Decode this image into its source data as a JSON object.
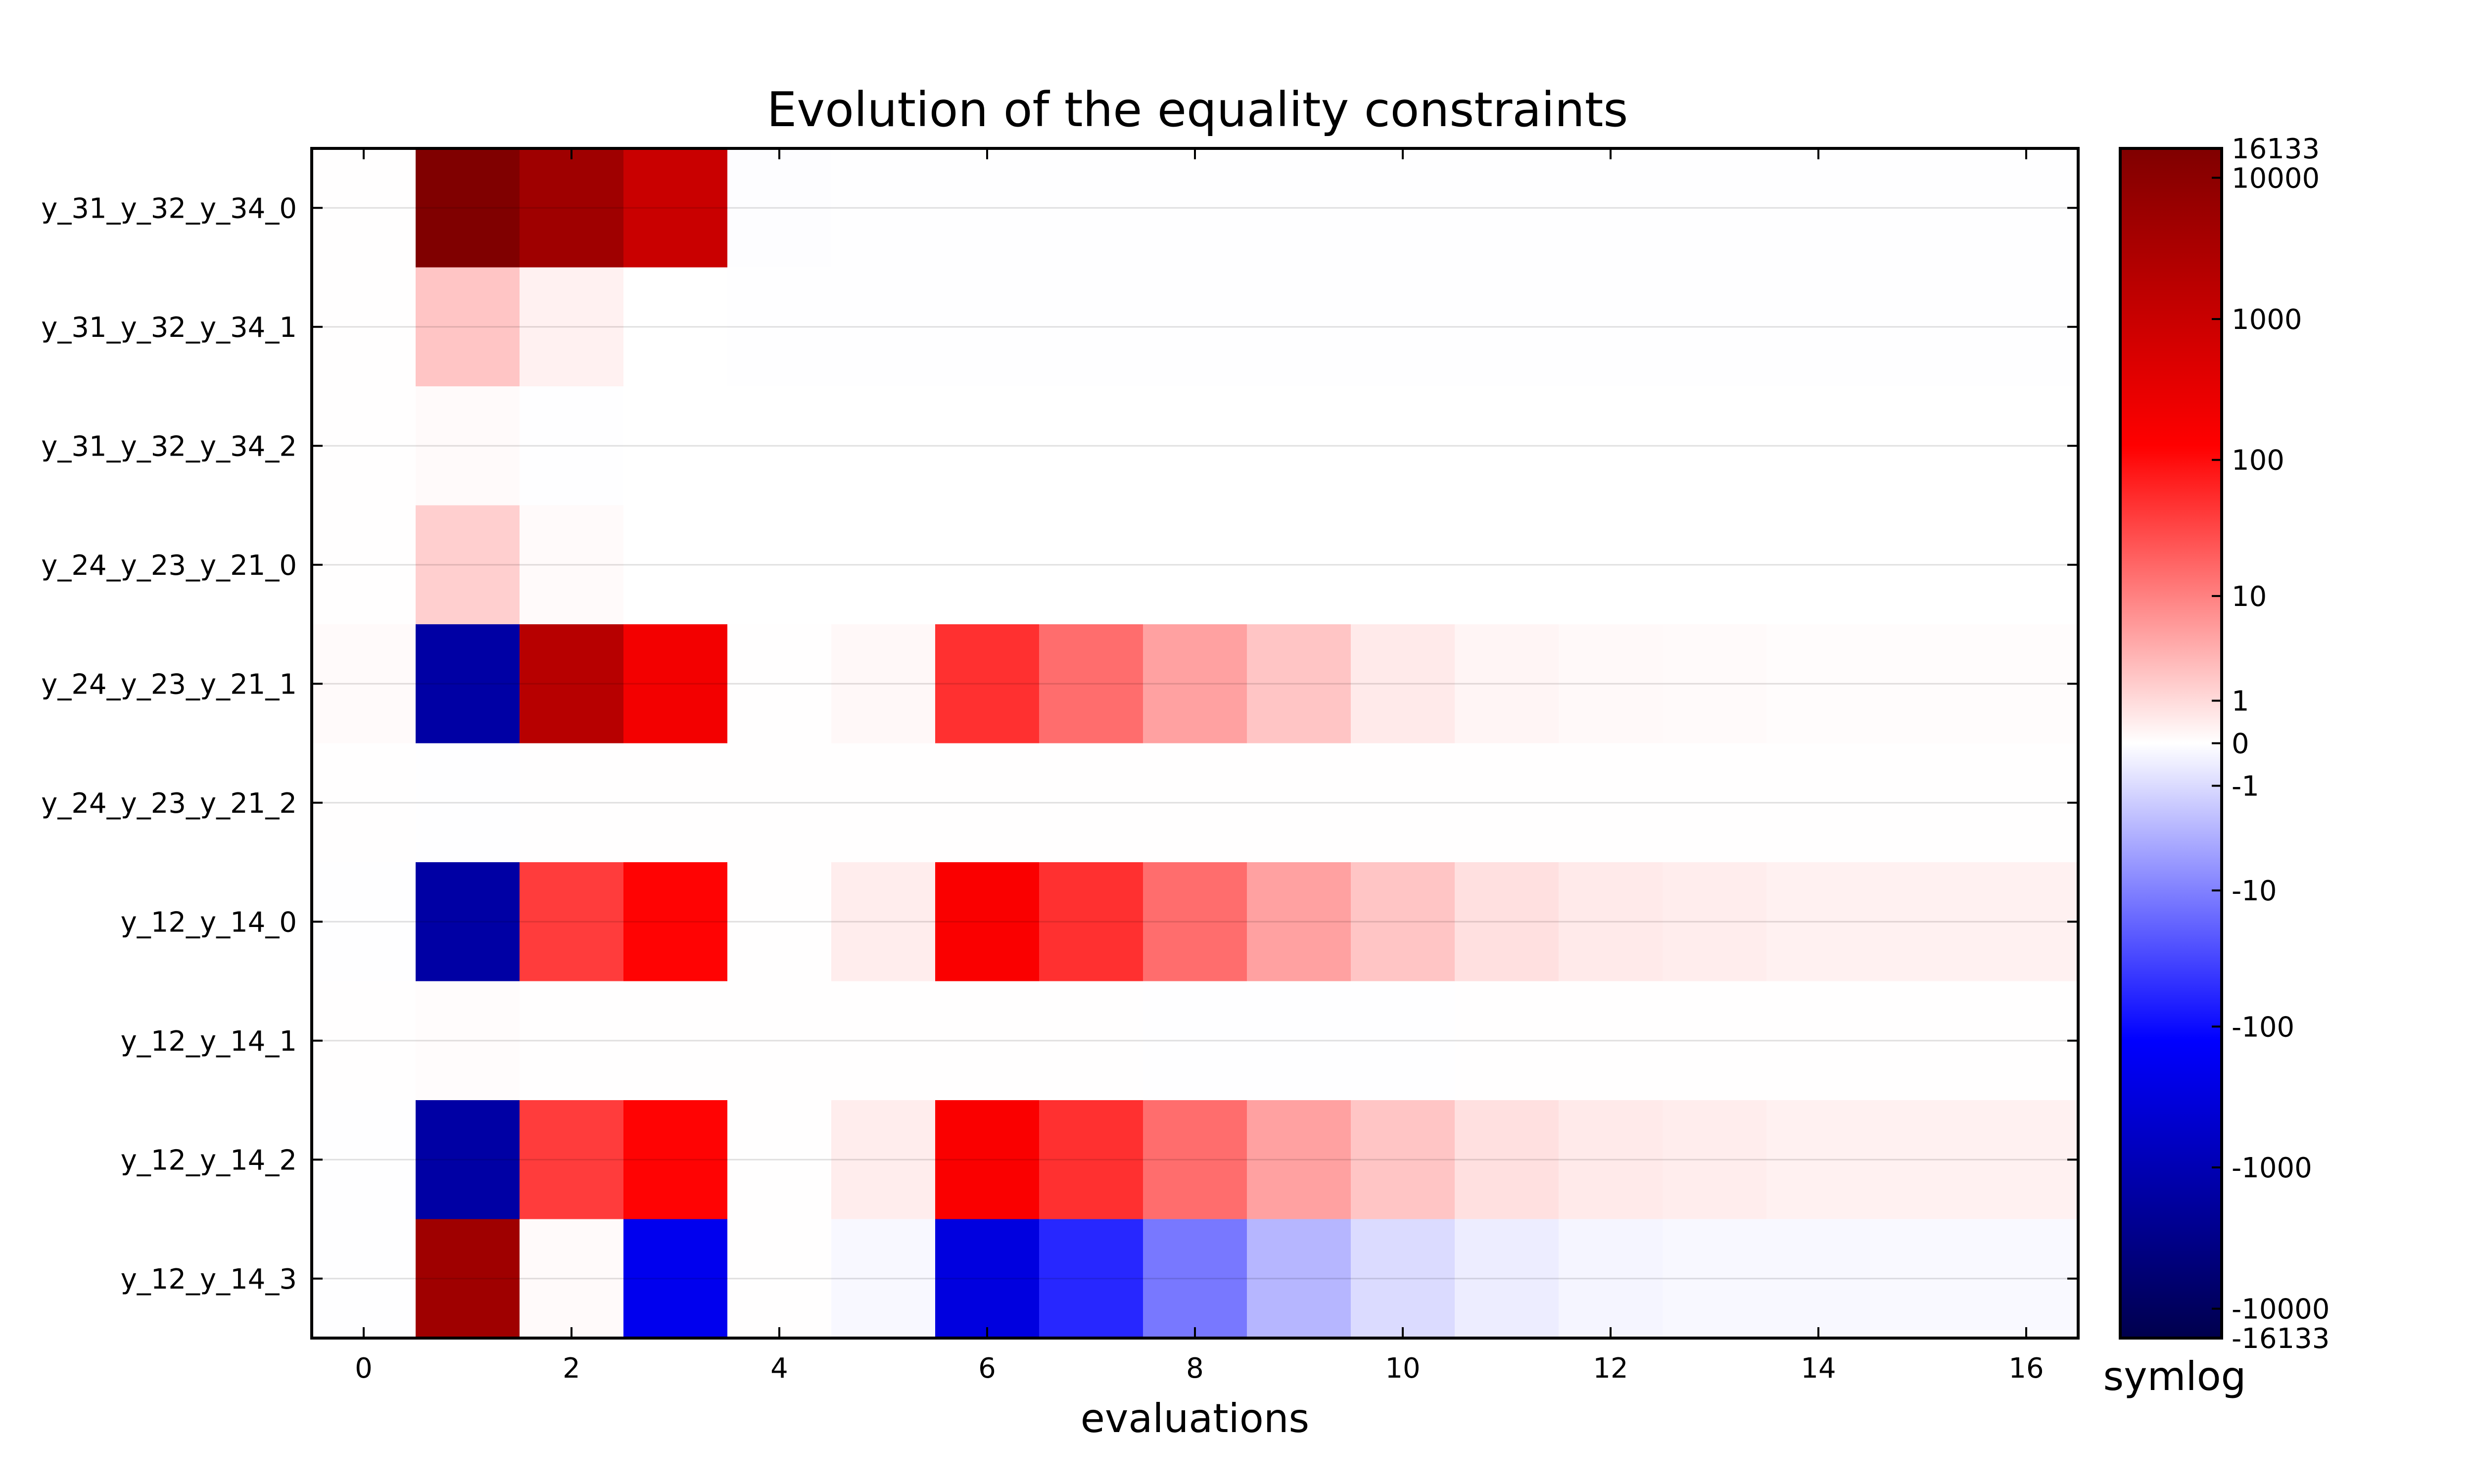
{
  "chart_data": {
    "type": "heatmap",
    "title": "Evolution of the equality constraints",
    "xlabel": "evaluations",
    "ylabel": "",
    "x_ticks": [
      0,
      2,
      4,
      6,
      8,
      10,
      12,
      14,
      16
    ],
    "x_range": [
      -0.5,
      16.5
    ],
    "rows": [
      "y_31_y_32_y_34_0",
      "y_31_y_32_y_34_1",
      "y_31_y_32_y_34_2",
      "y_24_y_23_y_21_0",
      "y_24_y_23_y_21_1",
      "y_24_y_23_y_21_2",
      "y_12_y_14_0",
      "y_12_y_14_1",
      "y_12_y_14_2",
      "y_12_y_14_3"
    ],
    "grid": true,
    "values": [
      [
        0.01,
        16133,
        5000,
        1000,
        -0.03,
        -0.01,
        -0.01,
        -0.01,
        -0.01,
        -0.01,
        -0.01,
        -0.02,
        -0.02,
        -0.02,
        -0.02,
        -0.02,
        -0.02
      ],
      [
        0.01,
        2,
        0.3,
        0.001,
        -0.02,
        -0.02,
        -0.01,
        -0.01,
        -0.01,
        -0.01,
        -0.01,
        -0.01,
        -0.01,
        -0.01,
        -0.01,
        -0.01,
        -0.01
      ],
      [
        0.01,
        0.1,
        -0.01,
        0.005,
        0.005,
        0.005,
        0.005,
        0.005,
        0.005,
        0.005,
        0.005,
        0.005,
        0.005,
        0.005,
        0.005,
        0.005,
        0.005
      ],
      [
        0.01,
        1.5,
        0.1,
        -0.005,
        -0.005,
        -0.005,
        -0.005,
        -0.005,
        -0.005,
        -0.005,
        -0.005,
        -0.005,
        -0.005,
        -0.005,
        -0.005,
        -0.005,
        -0.005
      ],
      [
        0.1,
        -1500,
        2000,
        200,
        0.01,
        0.15,
        50,
        15,
        5,
        2,
        0.5,
        0.2,
        0.12,
        0.1,
        0.05,
        0.05,
        0.05
      ],
      [
        0.01,
        -0.02,
        0.01,
        0.01,
        0.01,
        0.01,
        0.01,
        0.01,
        0.01,
        0.01,
        0.01,
        0.01,
        0.01,
        0.01,
        0.01,
        0.01,
        0.01
      ],
      [
        -0.01,
        -1500,
        40,
        120,
        0.01,
        0.4,
        150,
        50,
        15,
        5,
        2,
        0.8,
        0.5,
        0.4,
        0.3,
        0.3,
        0.3
      ],
      [
        0.02,
        0.05,
        0.01,
        0.01,
        0.01,
        0.01,
        0.01,
        0.01,
        -0.01,
        -0.01,
        -0.01,
        0.01,
        0.01,
        0.01,
        0.01,
        0.01,
        0.01
      ],
      [
        -0.01,
        -1500,
        40,
        120,
        0.01,
        0.4,
        150,
        50,
        15,
        5,
        2,
        0.8,
        0.5,
        0.4,
        0.3,
        0.3,
        0.3
      ],
      [
        -0.01,
        5000,
        0.1,
        -200,
        0.01,
        -0.15,
        -300,
        -60,
        -12,
        -3,
        -1,
        -0.4,
        -0.2,
        -0.15,
        -0.15,
        -0.12,
        -0.12
      ]
    ],
    "colorbar": {
      "label": "symlog",
      "colormap": "seismic",
      "vmin": -16133,
      "vmax": 16133,
      "ticks": [
        16133,
        10000,
        1000,
        100,
        10,
        1,
        0,
        -1,
        -10,
        -100,
        -1000,
        -10000,
        -16133
      ],
      "tick_labels": [
        "16133",
        "10000",
        "1000",
        "100",
        "10",
        "1",
        "0",
        "-1",
        "-10",
        "-100",
        "-1000",
        "-10000",
        "-16133"
      ],
      "colors": {
        "dark_blue": "#00004d",
        "blue": "#0000ff",
        "white": "#ffffff",
        "red": "#ff0000",
        "dark_red": "#800000"
      }
    }
  }
}
